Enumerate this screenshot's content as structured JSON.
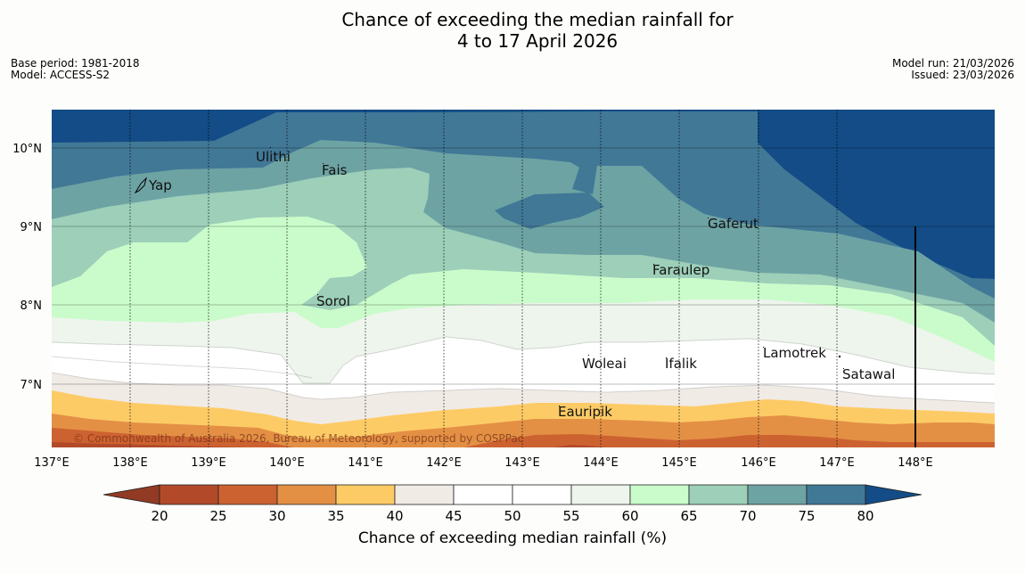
{
  "title_line1": "Chance of exceeding the median rainfall for",
  "title_line2": "4 to 17 April 2026",
  "meta_left": [
    "Base period: 1981-2018",
    "Model: ACCESS-S2"
  ],
  "meta_right": [
    "Model run: 21/03/2026",
    "Issued: 23/03/2026"
  ],
  "copyright": "© Commonwealth of Australia 2026, Bureau of Meteorology, supported by COSPPac",
  "x_axis_ticks": [
    "137°E",
    "138°E",
    "139°E",
    "140°E",
    "141°E",
    "142°E",
    "143°E",
    "144°E",
    "145°E",
    "146°E",
    "147°E",
    "148°E"
  ],
  "y_axis_ticks": [
    "10°N",
    "9°N",
    "8°N",
    "7°N"
  ],
  "places": [
    {
      "name": "Yap"
    },
    {
      "name": "Ulithi"
    },
    {
      "name": "Fais"
    },
    {
      "name": "Gaferut"
    },
    {
      "name": "Faraulep"
    },
    {
      "name": "Sorol"
    },
    {
      "name": "Lamotrek"
    },
    {
      "name": "Woleai"
    },
    {
      "name": "Ifalik"
    },
    {
      "name": "Satawal"
    },
    {
      "name": "Eauripik"
    }
  ],
  "colorbar": {
    "ticks": [
      "20",
      "25",
      "30",
      "35",
      "40",
      "45",
      "50",
      "55",
      "60",
      "65",
      "70",
      "75",
      "80"
    ],
    "colors": [
      "#b24a2a",
      "#cd6231",
      "#e39045",
      "#fdcb66",
      "#f1ebe6",
      "#ffffff",
      "#ffffff",
      "#edf5ec",
      "#cafccb",
      "#9dcfb9",
      "#6ea3a4",
      "#417896"
    ],
    "under_color": "#933a24",
    "over_color": "#134c86",
    "label": "Chance of exceeding median rainfall (%)"
  }
}
